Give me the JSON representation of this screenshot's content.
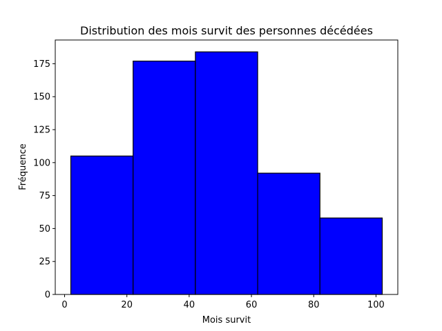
{
  "chart_data": {
    "type": "bar",
    "subtype": "histogram",
    "title": "Distribution des mois survit des personnes décédées",
    "xlabel": "Mois survit",
    "ylabel": "Fréquence",
    "bins": [
      {
        "start": 2,
        "end": 22,
        "value": 105
      },
      {
        "start": 22,
        "end": 42,
        "value": 177
      },
      {
        "start": 42,
        "end": 62,
        "value": 184
      },
      {
        "start": 62,
        "end": 82,
        "value": 92
      },
      {
        "start": 82,
        "end": 102,
        "value": 58
      }
    ],
    "xlim": [
      -3,
      107
    ],
    "ylim": [
      0,
      193
    ],
    "xticks": [
      0,
      20,
      40,
      60,
      80,
      100
    ],
    "yticks": [
      0,
      25,
      50,
      75,
      100,
      125,
      150,
      175
    ],
    "grid": false,
    "bar_color": "#0000ff",
    "edge_color": "#000000"
  }
}
